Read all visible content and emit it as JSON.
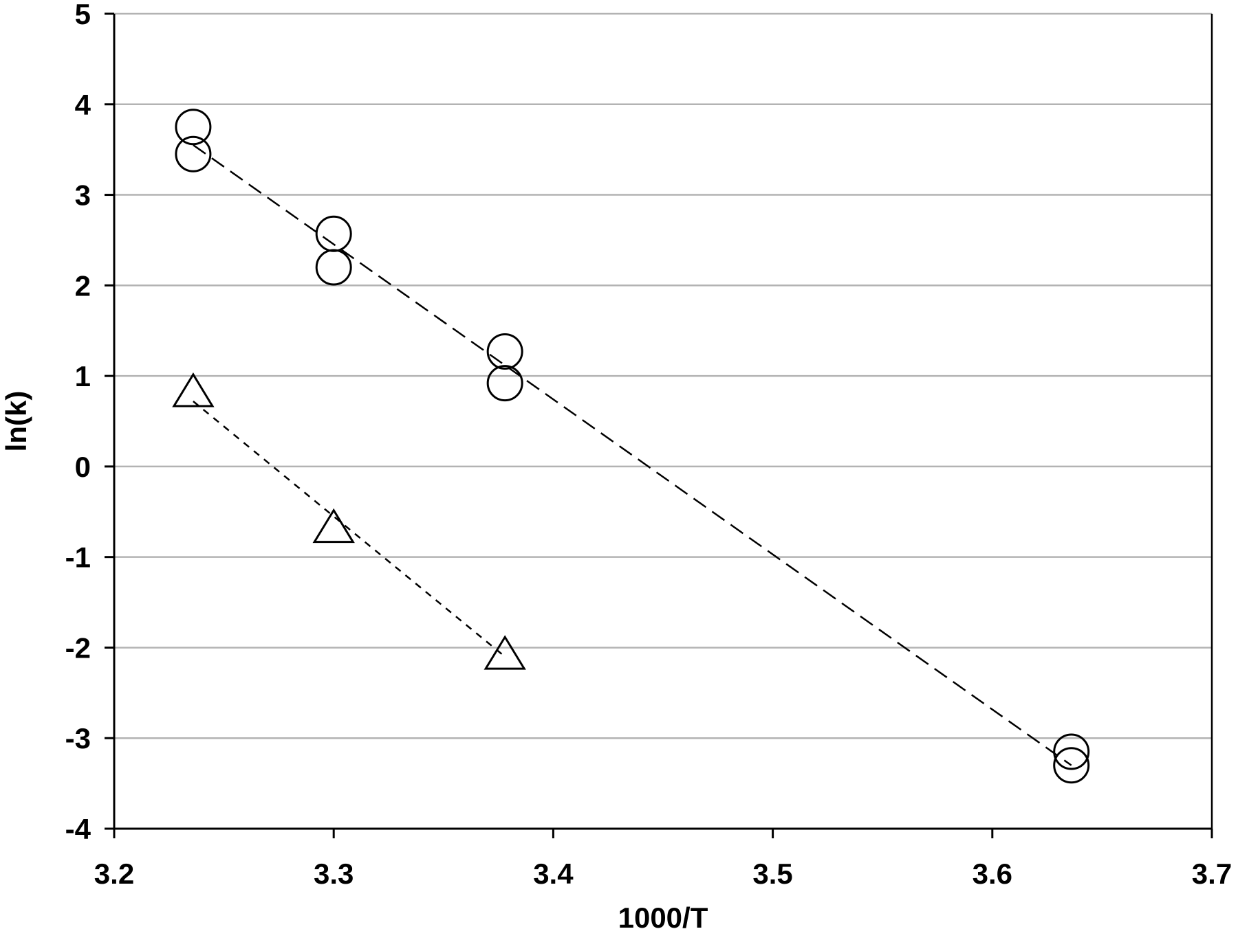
{
  "chart_data": {
    "type": "scatter",
    "title": "",
    "xlabel": "1000/T",
    "ylabel": "ln(k)",
    "xlim": [
      3.2,
      3.7
    ],
    "ylim": [
      -4,
      5
    ],
    "x_ticks": [
      "3.2",
      "3.3",
      "3.4",
      "3.5",
      "3.6",
      "3.7"
    ],
    "y_ticks": [
      "-4",
      "-3",
      "-2",
      "-1",
      "0",
      "1",
      "2",
      "3",
      "4",
      "5"
    ],
    "grid": "horizontal",
    "legend": "none",
    "series": [
      {
        "marker": "circle",
        "points": [
          {
            "x": 3.236,
            "y": 3.75
          },
          {
            "x": 3.236,
            "y": 3.45
          },
          {
            "x": 3.3,
            "y": 2.57
          },
          {
            "x": 3.3,
            "y": 2.2
          },
          {
            "x": 3.378,
            "y": 1.27
          },
          {
            "x": 3.378,
            "y": 0.92
          },
          {
            "x": 3.636,
            "y": -3.15
          },
          {
            "x": 3.636,
            "y": -3.3
          }
        ],
        "trendline": {
          "style": "long-dash",
          "x": [
            3.236,
            3.636
          ],
          "y": [
            3.55,
            -3.3
          ]
        }
      },
      {
        "marker": "triangle",
        "points": [
          {
            "x": 3.236,
            "y": 0.8
          },
          {
            "x": 3.3,
            "y": -0.7
          },
          {
            "x": 3.378,
            "y": -2.1
          }
        ],
        "trendline": {
          "style": "short-dash",
          "x": [
            3.236,
            3.378
          ],
          "y": [
            0.72,
            -2.1
          ]
        }
      }
    ]
  }
}
